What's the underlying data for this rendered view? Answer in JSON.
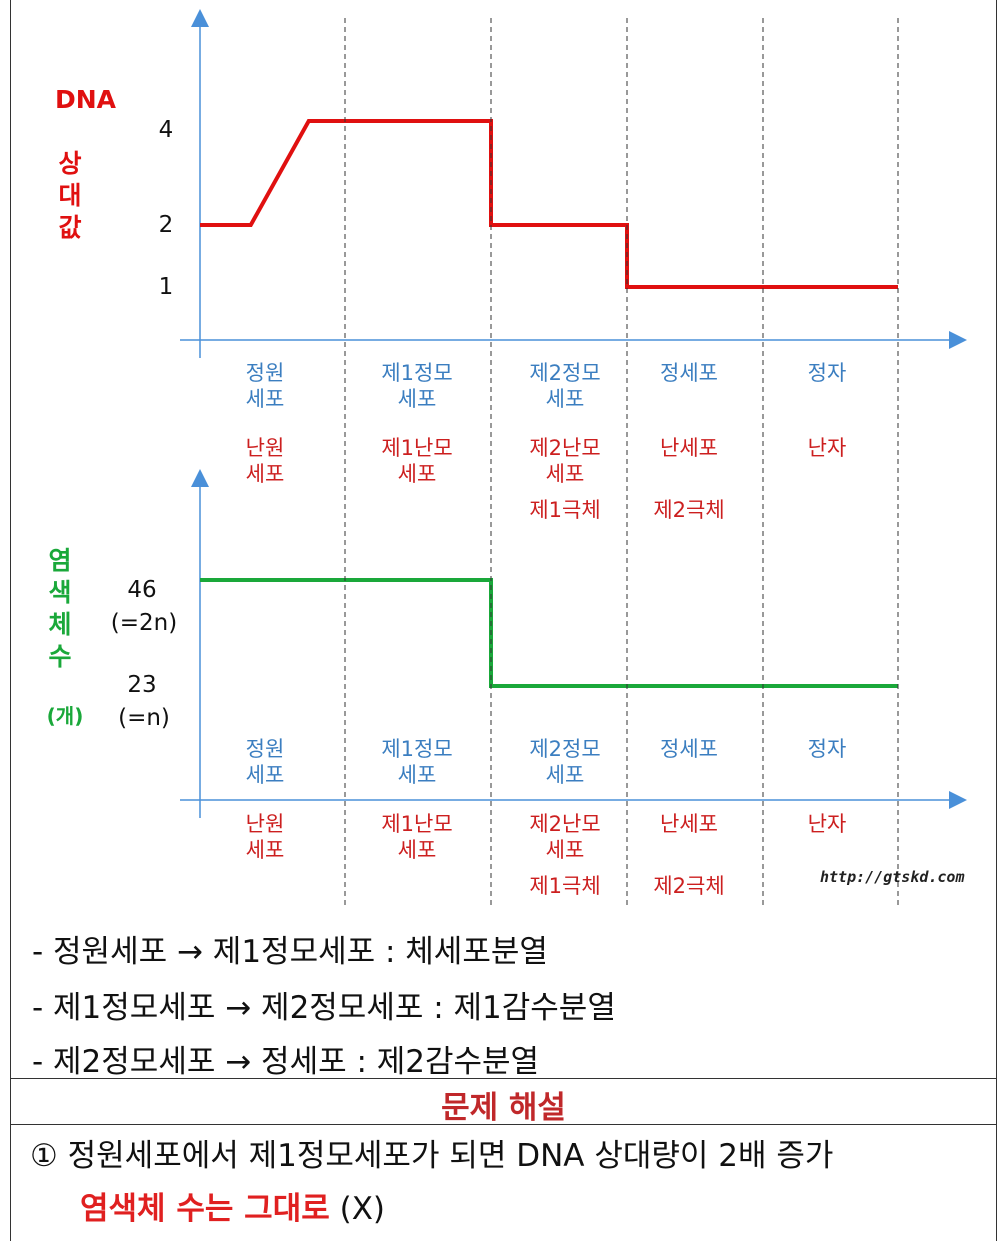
{
  "dna_chart": {
    "ylabel": "DNA\n\n상\n대\n값",
    "color": "#e01010",
    "ticks": [
      4,
      2,
      1
    ],
    "stages_top": [
      "정원\n세포",
      "제1정모\n세포",
      "제2정모\n세포",
      "정세포",
      "정자"
    ],
    "stages_bottom": [
      "난원\n세포",
      "제1난모\n세포",
      "제2난모\n세포",
      "난세포",
      "난자"
    ],
    "polar_bodies": [
      "제1극체",
      "제2극체"
    ]
  },
  "chrom_chart": {
    "ylabel": "염\n색\n체\n수",
    "unit": "(개)",
    "color": "#1aa83a",
    "ticks": [
      {
        "value": "46",
        "sub": "(=2n)"
      },
      {
        "value": "23",
        "sub": "(=n)"
      }
    ],
    "stages_top": [
      "정원\n세포",
      "제1정모\n세포",
      "제2정모\n세포",
      "정세포",
      "정자"
    ],
    "stages_bottom": [
      "난원\n세포",
      "제1난모\n세포",
      "제2난모\n세포",
      "난세포",
      "난자"
    ],
    "polar_bodies": [
      "제1극체",
      "제2극체"
    ],
    "source": "http://gtskd.com"
  },
  "chart_data": [
    {
      "type": "line",
      "title": "",
      "ylabel": "DNA 상대값",
      "xlabel": "",
      "categories": [
        "정원세포",
        "제1정모세포",
        "제2정모세포",
        "정세포",
        "정자"
      ],
      "points": [
        [
          0,
          2
        ],
        [
          0.35,
          2
        ],
        [
          0.75,
          4
        ],
        [
          2,
          4
        ],
        [
          2,
          2
        ],
        [
          3,
          2
        ],
        [
          3,
          1
        ],
        [
          5,
          1
        ]
      ],
      "yticks": [
        1,
        2,
        4
      ],
      "ylim": [
        0,
        5.5
      ]
    },
    {
      "type": "line",
      "title": "",
      "ylabel": "염색체 수 (개)",
      "xlabel": "",
      "categories": [
        "정원세포",
        "제1정모세포",
        "제2정모세포",
        "정세포",
        "정자"
      ],
      "points": [
        [
          0,
          46
        ],
        [
          2,
          46
        ],
        [
          2,
          23
        ],
        [
          5,
          23
        ]
      ],
      "yticks": [
        23,
        46
      ],
      "ylim": [
        0,
        60
      ]
    }
  ],
  "notes": [
    "- 정원세포 → 제1정모세포 : 체세포분열",
    "- 제1정모세포 → 제2정모세포 : 제1감수분열",
    "- 제2정모세포 → 정세포 : 제2감수분열"
  ],
  "explanation": {
    "header": "문제 해설",
    "line1": "① 정원세포에서 제1정모세포가 되면 DNA 상대량이 2배 증가",
    "line2_red": "염색체 수는 그대로",
    "line2_tail": " (X)"
  }
}
